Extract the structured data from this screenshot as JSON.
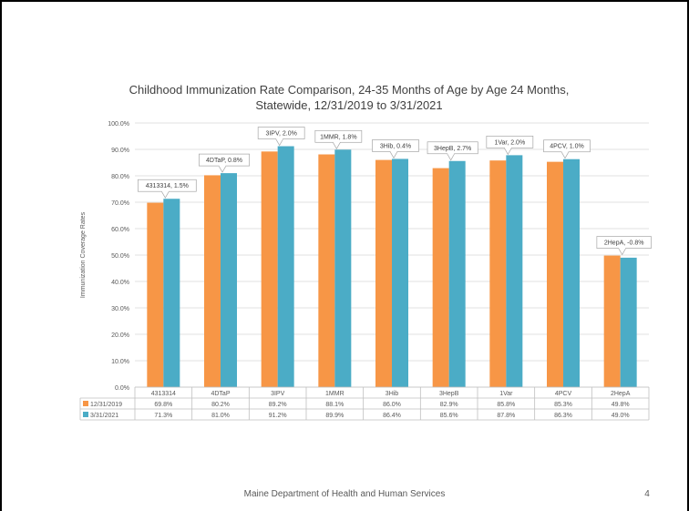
{
  "slide": {
    "footer": "Maine Department of Health and Human Services",
    "page_number": "4"
  },
  "chart_data": {
    "type": "bar",
    "title": "Childhood Immunization Rate Comparison, 24-35 Months of Age by Age 24 Months, Statewide, 12/31/2019 to 3/31/2021",
    "title_lines": [
      "Childhood Immunization Rate Comparison, 24-35 Months of Age by Age 24 Months,",
      "Statewide, 12/31/2019 to 3/31/2021"
    ],
    "ylabel": "Immunization Coverage Rates",
    "xlabel": "",
    "ylim": [
      0,
      100
    ],
    "yticks": [
      "0.0%",
      "10.0%",
      "20.0%",
      "30.0%",
      "40.0%",
      "50.0%",
      "60.0%",
      "70.0%",
      "80.0%",
      "90.0%",
      "100.0%"
    ],
    "grid": true,
    "categories": [
      "4313314",
      "4DTaP",
      "3IPV",
      "1MMR",
      "3Hib",
      "3HepB",
      "1Var",
      "4PCV",
      "2HepA"
    ],
    "series": [
      {
        "name": "12/31/2019",
        "color": "#F79646",
        "values": [
          69.8,
          80.2,
          89.2,
          88.1,
          86.0,
          82.9,
          85.8,
          85.3,
          49.8
        ],
        "labels": [
          "69.8%",
          "80.2%",
          "89.2%",
          "88.1%",
          "86.0%",
          "82.9%",
          "85.8%",
          "85.3%",
          "49.8%"
        ]
      },
      {
        "name": "3/31/2021",
        "color": "#4BACC6",
        "values": [
          71.3,
          81.0,
          91.2,
          89.9,
          86.4,
          85.6,
          87.8,
          86.3,
          49.0
        ],
        "labels": [
          "71.3%",
          "81.0%",
          "91.2%",
          "89.9%",
          "86.4%",
          "85.6%",
          "87.8%",
          "86.3%",
          "49.0%"
        ]
      }
    ],
    "annotations": [
      "4313314, 1.5%",
      "4DTaP, 0.8%",
      "3IPV, 2.0%",
      "1MMR, 1.8%",
      "3Hib, 0.4%",
      "3HepB, 2.7%",
      "1Var, 2.0%",
      "4PCV, 1.0%",
      "2HepA, -0.8%"
    ],
    "data_table": true
  }
}
